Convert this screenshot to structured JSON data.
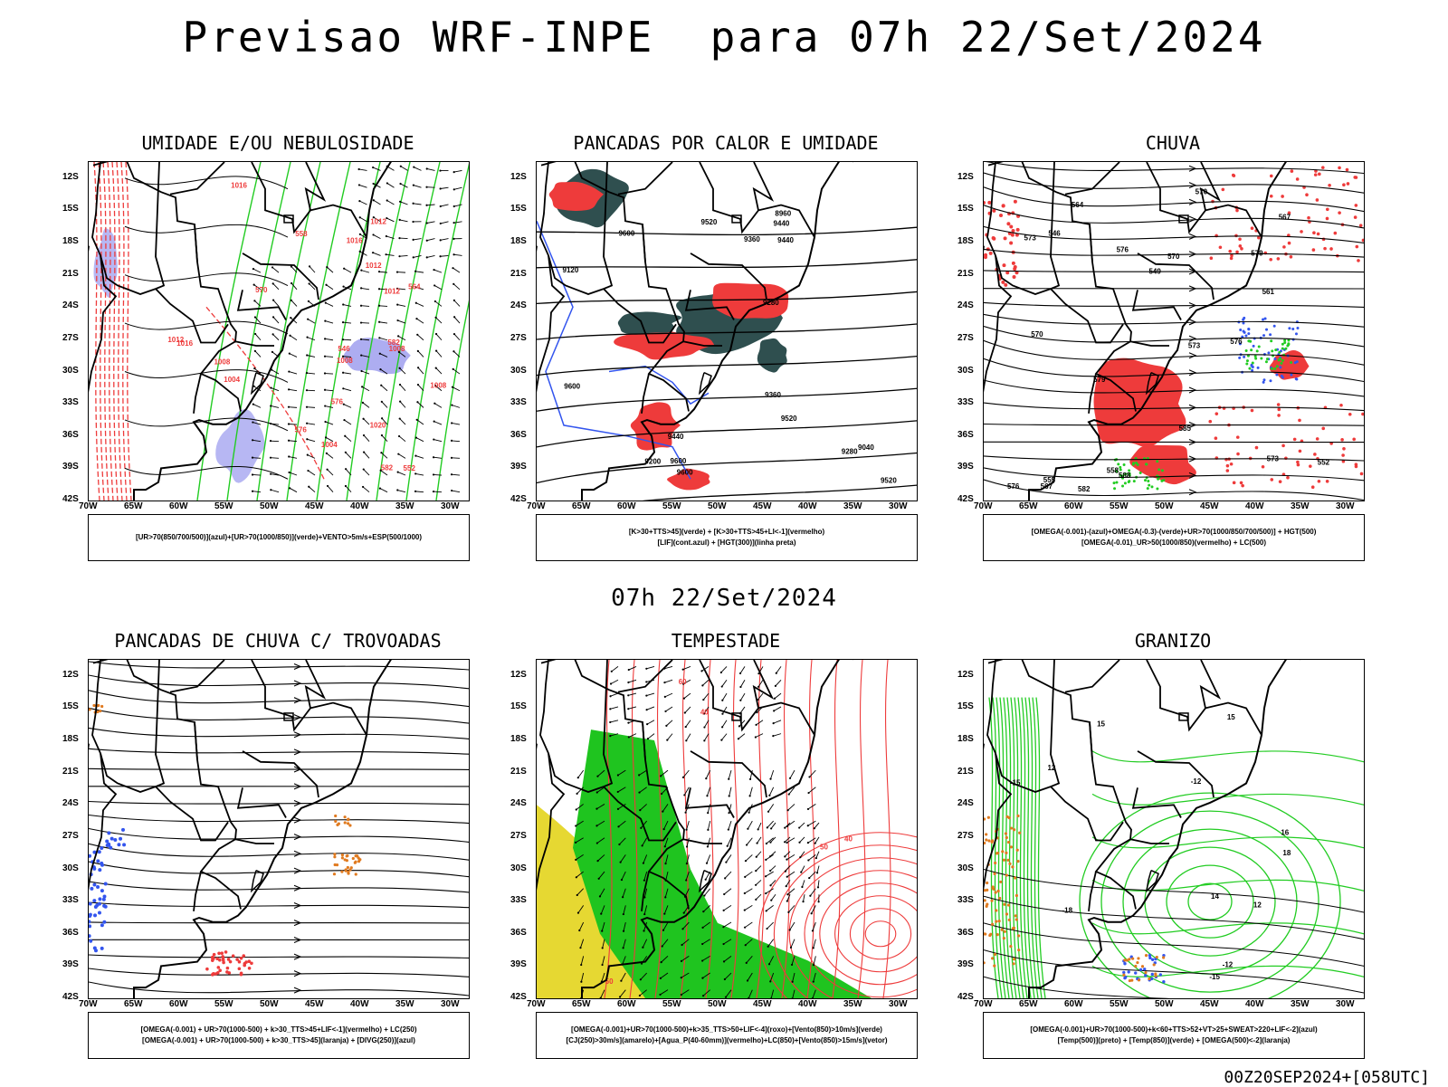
{
  "header": {
    "title": "Previsao WRF-INPE  para 07h 22/Set/2024",
    "subtitle": "07h 22/Set/2024",
    "footer": "00Z20SEP2024+[058UTC]"
  },
  "axes": {
    "lat_labels": [
      "12S",
      "15S",
      "18S",
      "21S",
      "24S",
      "27S",
      "30S",
      "33S",
      "36S",
      "39S",
      "42S"
    ],
    "lon_labels": [
      "70W",
      "65W",
      "60W",
      "55W",
      "50W",
      "45W",
      "40W",
      "35W",
      "30W"
    ]
  },
  "colors": {
    "red": "#ee3b3b",
    "green": "#22cc22",
    "blue": "#3355ee",
    "lavender": "#9999ee",
    "teal": "#2f4f4f",
    "yellow": "#e6d832",
    "orange": "#e07a1f",
    "black": "#000000"
  },
  "panels": [
    {
      "id": "umidade",
      "title": "UMIDADE E/OU NEBULOSIDADE",
      "legend": [
        "[UR>70(850/700/500)](azul)+[UR>70(1000/850)](verde)+VENTO>5m/s+ESP(500/1000)"
      ],
      "contour_labels": [
        "1012",
        "1016",
        "1008",
        "1012",
        "1016",
        "1020",
        "1004",
        "1008",
        "1012",
        "1016",
        "1012",
        "1008",
        "1004",
        "1008",
        "576",
        "582",
        "570",
        "564",
        "558",
        "552",
        "546",
        "582",
        "576"
      ]
    },
    {
      "id": "pancadas-calor",
      "title": "PANCADAS POR CALOR E UMIDADE",
      "legend": [
        "[K>30+TTS>45](verde) + [K>30+TTS>45+LI<-1](vermelho)",
        "[LIF](cont.azul) + [HGT(300)](linha preta)"
      ],
      "contour_labels": [
        "9600",
        "9600",
        "9600",
        "9600",
        "9520",
        "9520",
        "9520",
        "9440",
        "9440",
        "9360",
        "9360",
        "9280",
        "9200",
        "9120",
        "9040",
        "8960",
        "9440",
        "9280"
      ]
    },
    {
      "id": "chuva",
      "title": "CHUVA",
      "legend": [
        "[OMEGA(-0.001)-(azul)+OMEGA(-0.3)-(verde)+UR>70(1000/850/700/500)] + HGT(500)",
        "[OMEGA(-0.01)_UR>50(1000/850)(vermelho) + LC(500)"
      ],
      "contour_labels": [
        "582",
        "585",
        "588",
        "579",
        "576",
        "573",
        "570",
        "567",
        "564",
        "561",
        "558",
        "555",
        "552",
        "549",
        "546",
        "576",
        "573",
        "570",
        "579",
        "576",
        "573",
        "570",
        "567"
      ]
    },
    {
      "id": "pancadas-trovoadas",
      "title": "PANCADAS DE CHUVA C/ TROVOADAS",
      "legend": [
        "[OMEGA(-0.001) + UR>70(1000-500) + k>30_TTS>45+LIF<-1](vermelho) + LC(250)",
        "[OMEGA(-0.001) + UR>70(1000-500) + k>30_TTS>45](laranja) + [DIVG(250)](azul)"
      ],
      "contour_labels": []
    },
    {
      "id": "tempestade",
      "title": "TEMPESTADE",
      "legend": [
        "[OMEGA(-0.001)+UR>70(1000-500)+k>35_TTS>50+LIF<-4](roxo)+[Vento(850)>10m/s](verde)",
        "[CJ(250)>30m/s](amarelo)+[Agua_P(40-60mm)](vermelho)+LC(850)+[Vento(850)>15m/s](vetor)"
      ],
      "contour_labels": [
        "40",
        "50",
        "60",
        "50",
        "40"
      ]
    },
    {
      "id": "granizo",
      "title": "GRANIZO",
      "legend": [
        "[OMEGA(-0.001)+UR>70(1000-500)+k<60+TTS>52+VT>25+SWEAT>220+LIF<-2](azul)",
        "[Temp(500)](preto) + [Temp(850)](verde) + [OMEGA(500)<-2](laranja)"
      ],
      "contour_labels": [
        "-15",
        "-12",
        "-18",
        "-15",
        "-12",
        "18",
        "15",
        "12",
        "14",
        "12",
        "15",
        "16"
      ]
    }
  ]
}
